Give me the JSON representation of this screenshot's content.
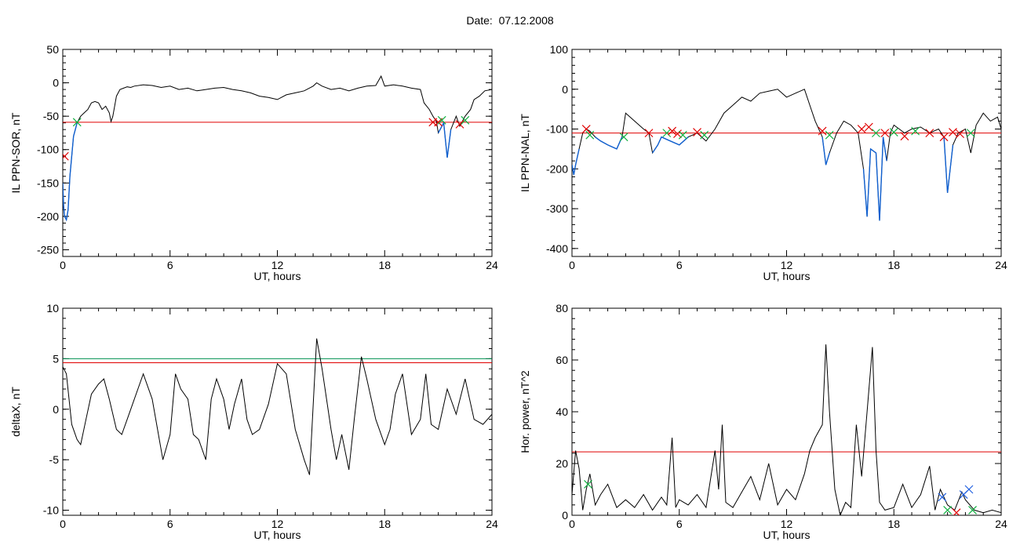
{
  "page_title": "Date:  07.12.2008",
  "colors": {
    "trace": "#000000",
    "threshold_red": "#e00000",
    "threshold_green": "#009050",
    "segment_blue": "#1060d0",
    "mark_red": "#e00000",
    "mark_green": "#10b040",
    "mark_blue": "#2060e0"
  },
  "chart_data": [
    {
      "type": "line",
      "xlabel": "UT, hours",
      "ylabel": "IL PPN-SOR, nT",
      "xlim": [
        0,
        24
      ],
      "ylim": [
        -260,
        50
      ],
      "x_ticks": [
        "0",
        "6",
        "12",
        "18",
        "24"
      ],
      "y_ticks": [
        "50",
        "0",
        "-50",
        "-100",
        "-150",
        "-200",
        "-250"
      ],
      "x_tick_values": [
        0,
        6,
        12,
        18,
        24
      ],
      "y_tick_values": [
        50,
        0,
        -50,
        -100,
        -150,
        -200,
        -250
      ],
      "thresholds": [
        {
          "value": -59,
          "color": "red"
        }
      ],
      "series": [
        {
          "x": [
            0,
            0.05,
            0.1,
            0.2,
            0.3,
            0.4,
            0.5,
            0.6,
            0.7,
            0.8,
            0.9,
            1.0,
            1.2,
            1.4,
            1.6,
            1.8,
            2.0,
            2.2,
            2.4,
            2.6,
            2.7,
            2.8,
            3.0,
            3.2,
            3.4,
            3.6,
            3.8,
            4.0,
            4.5,
            5.0,
            5.5,
            6.0,
            6.5,
            7.0,
            7.5,
            8.0,
            8.5,
            9.0,
            9.5,
            10.0,
            10.5,
            11.0,
            11.5,
            12.0,
            12.5,
            13.0,
            13.5,
            14.0,
            14.2,
            14.5,
            15.0,
            15.5,
            16.0,
            16.5,
            17.0,
            17.5,
            17.8,
            18.0,
            18.5,
            19.0,
            19.5,
            20.0,
            20.2,
            20.5,
            20.7,
            20.9,
            21.0,
            21.1,
            21.3,
            21.5,
            21.7,
            22.0,
            22.2,
            22.5,
            22.8,
            23.0,
            23.3,
            23.6,
            24.0
          ],
          "y": [
            -150,
            -185,
            -200,
            -205,
            -190,
            -140,
            -110,
            -80,
            -70,
            -60,
            -55,
            -50,
            -45,
            -40,
            -30,
            -28,
            -30,
            -40,
            -35,
            -45,
            -58,
            -50,
            -20,
            -10,
            -8,
            -6,
            -7,
            -5,
            -3,
            -4,
            -7,
            -5,
            -10,
            -8,
            -12,
            -10,
            -8,
            -7,
            -10,
            -12,
            -15,
            -20,
            -22,
            -25,
            -18,
            -15,
            -12,
            -5,
            0,
            -5,
            -10,
            -8,
            -12,
            -8,
            -5,
            -4,
            10,
            -5,
            -3,
            -5,
            -8,
            -10,
            -30,
            -40,
            -50,
            -58,
            -75,
            -70,
            -60,
            -112,
            -70,
            -50,
            -65,
            -50,
            -40,
            -25,
            -20,
            -12,
            -10
          ]
        }
      ],
      "marks": [
        {
          "x": 0.1,
          "y": -110,
          "color": "red"
        },
        {
          "x": 0.8,
          "y": -59,
          "color": "green"
        },
        {
          "x": 20.7,
          "y": -59,
          "color": "red"
        },
        {
          "x": 21.0,
          "y": -59,
          "color": "red"
        },
        {
          "x": 21.2,
          "y": -56,
          "color": "green"
        },
        {
          "x": 22.2,
          "y": -62,
          "color": "red"
        },
        {
          "x": 22.5,
          "y": -56,
          "color": "green"
        }
      ]
    },
    {
      "type": "line",
      "xlabel": "UT, hours",
      "ylabel": "IL PPN-NAL, nT",
      "xlim": [
        0,
        24
      ],
      "ylim": [
        -420,
        100
      ],
      "x_ticks": [
        "0",
        "6",
        "12",
        "18",
        "24"
      ],
      "y_ticks": [
        "100",
        "0",
        "-100",
        "-200",
        "-300",
        "-400"
      ],
      "x_tick_values": [
        0,
        6,
        12,
        18,
        24
      ],
      "y_tick_values": [
        100,
        0,
        -100,
        -200,
        -300,
        -400
      ],
      "thresholds": [
        {
          "value": -110,
          "color": "red"
        }
      ],
      "series": [
        {
          "x": [
            0,
            0.1,
            0.2,
            0.4,
            0.6,
            0.8,
            1.0,
            1.3,
            1.6,
            2.0,
            2.5,
            2.8,
            3.0,
            3.5,
            4.0,
            4.3,
            4.5,
            4.8,
            5.0,
            5.5,
            6.0,
            6.5,
            7.0,
            7.5,
            8.0,
            8.5,
            9.0,
            9.5,
            10.0,
            10.5,
            11.0,
            11.5,
            12.0,
            12.5,
            13.0,
            13.3,
            13.6,
            14.0,
            14.2,
            14.4,
            14.8,
            15.2,
            15.6,
            16.0,
            16.3,
            16.5,
            16.7,
            17.0,
            17.2,
            17.4,
            17.6,
            17.8,
            18.0,
            18.3,
            18.6,
            19.0,
            19.5,
            20.0,
            20.5,
            20.8,
            21.0,
            21.3,
            21.6,
            22.0,
            22.3,
            22.6,
            23.0,
            23.4,
            23.8,
            24.0
          ],
          "y": [
            -190,
            -215,
            -190,
            -150,
            -110,
            -100,
            -105,
            -120,
            -130,
            -140,
            -150,
            -120,
            -60,
            -80,
            -100,
            -110,
            -160,
            -140,
            -120,
            -130,
            -140,
            -120,
            -110,
            -130,
            -100,
            -60,
            -40,
            -20,
            -30,
            -10,
            -5,
            0,
            -20,
            -10,
            0,
            -40,
            -80,
            -120,
            -190,
            -160,
            -110,
            -80,
            -90,
            -110,
            -200,
            -320,
            -150,
            -160,
            -330,
            -120,
            -180,
            -110,
            -90,
            -100,
            -110,
            -100,
            -95,
            -110,
            -100,
            -120,
            -260,
            -140,
            -110,
            -100,
            -160,
            -90,
            -60,
            -80,
            -70,
            -100
          ]
        }
      ],
      "marks": [
        {
          "x": 0.8,
          "y": -100,
          "color": "red"
        },
        {
          "x": 1.0,
          "y": -115,
          "color": "green"
        },
        {
          "x": 2.9,
          "y": -120,
          "color": "green"
        },
        {
          "x": 4.3,
          "y": -110,
          "color": "red"
        },
        {
          "x": 5.3,
          "y": -110,
          "color": "green"
        },
        {
          "x": 5.6,
          "y": -105,
          "color": "red"
        },
        {
          "x": 5.9,
          "y": -112,
          "color": "red"
        },
        {
          "x": 6.2,
          "y": -115,
          "color": "green"
        },
        {
          "x": 7.0,
          "y": -108,
          "color": "red"
        },
        {
          "x": 7.4,
          "y": -115,
          "color": "green"
        },
        {
          "x": 14.0,
          "y": -105,
          "color": "red"
        },
        {
          "x": 14.4,
          "y": -115,
          "color": "green"
        },
        {
          "x": 16.2,
          "y": -100,
          "color": "red"
        },
        {
          "x": 16.6,
          "y": -95,
          "color": "red"
        },
        {
          "x": 17.0,
          "y": -110,
          "color": "green"
        },
        {
          "x": 17.5,
          "y": -110,
          "color": "red"
        },
        {
          "x": 18.0,
          "y": -108,
          "color": "green"
        },
        {
          "x": 18.6,
          "y": -118,
          "color": "red"
        },
        {
          "x": 19.2,
          "y": -105,
          "color": "green"
        },
        {
          "x": 20.0,
          "y": -110,
          "color": "red"
        },
        {
          "x": 20.8,
          "y": -120,
          "color": "red"
        },
        {
          "x": 21.3,
          "y": -108,
          "color": "red"
        },
        {
          "x": 21.7,
          "y": -112,
          "color": "red"
        },
        {
          "x": 22.3,
          "y": -110,
          "color": "green"
        }
      ]
    },
    {
      "type": "line",
      "xlabel": "UT, hours",
      "ylabel": "deltaX, nT",
      "xlim": [
        0,
        24
      ],
      "ylim": [
        -10.5,
        10
      ],
      "x_ticks": [
        "0",
        "6",
        "12",
        "18",
        "24"
      ],
      "y_ticks": [
        "10",
        "5",
        "0",
        "-5",
        "-10"
      ],
      "x_tick_values": [
        0,
        6,
        12,
        18,
        24
      ],
      "y_tick_values": [
        10,
        5,
        0,
        -5,
        -10
      ],
      "thresholds": [
        {
          "value": 5.0,
          "color": "green"
        },
        {
          "value": 4.6,
          "color": "red"
        }
      ],
      "series": [
        {
          "x": [
            0,
            0.2,
            0.5,
            0.8,
            1.0,
            1.3,
            1.6,
            2.0,
            2.3,
            2.6,
            3.0,
            3.3,
            3.6,
            4.0,
            4.5,
            5.0,
            5.3,
            5.6,
            6.0,
            6.3,
            6.6,
            7.0,
            7.3,
            7.6,
            8.0,
            8.3,
            8.6,
            9.0,
            9.3,
            9.6,
            10.0,
            10.3,
            10.6,
            11.0,
            11.5,
            12.0,
            12.5,
            13.0,
            13.5,
            13.8,
            14.2,
            14.5,
            15.0,
            15.3,
            15.6,
            16.0,
            16.3,
            16.7,
            17.0,
            17.5,
            18.0,
            18.3,
            18.6,
            19.0,
            19.5,
            20.0,
            20.3,
            20.6,
            21.0,
            21.5,
            22.0,
            22.5,
            23.0,
            23.5,
            24.0
          ],
          "y": [
            4.2,
            3.5,
            -1.5,
            -3.0,
            -3.5,
            -1.0,
            1.5,
            2.5,
            3.0,
            1.0,
            -2.0,
            -2.5,
            -1.0,
            1.0,
            3.5,
            1.0,
            -2.0,
            -5.0,
            -2.5,
            3.5,
            2.0,
            1.0,
            -2.5,
            -3.0,
            -5.0,
            1.0,
            3.0,
            1.0,
            -2.0,
            0.5,
            3.0,
            -1.0,
            -2.5,
            -2.0,
            0.5,
            4.5,
            3.5,
            -2.0,
            -5.0,
            -6.5,
            7.0,
            4.0,
            -2.0,
            -5.0,
            -2.5,
            -6.0,
            -1.0,
            5.2,
            3.0,
            -1.0,
            -3.5,
            -2.0,
            1.5,
            3.5,
            -2.5,
            -1.0,
            3.5,
            -1.5,
            -2.0,
            2.0,
            -0.5,
            3.0,
            -1.0,
            -1.5,
            -0.5
          ]
        }
      ],
      "marks": []
    },
    {
      "type": "line",
      "xlabel": "UT, hours",
      "ylabel": "Hor. power, nT^2",
      "xlim": [
        0,
        24
      ],
      "ylim": [
        0,
        80
      ],
      "x_ticks": [
        "0",
        "6",
        "12",
        "18",
        "24"
      ],
      "y_ticks": [
        "80",
        "60",
        "40",
        "20",
        "0"
      ],
      "x_tick_values": [
        0,
        6,
        12,
        18,
        24
      ],
      "y_tick_values": [
        80,
        60,
        40,
        20,
        0
      ],
      "thresholds": [
        {
          "value": 24.5,
          "color": "red"
        }
      ],
      "series": [
        {
          "x": [
            0,
            0.2,
            0.4,
            0.6,
            0.8,
            1.0,
            1.3,
            1.6,
            2.0,
            2.5,
            3.0,
            3.5,
            4.0,
            4.5,
            5.0,
            5.3,
            5.6,
            5.8,
            6.0,
            6.5,
            7.0,
            7.5,
            8.0,
            8.2,
            8.4,
            8.6,
            9.0,
            9.5,
            10.0,
            10.5,
            11.0,
            11.5,
            12.0,
            12.5,
            13.0,
            13.3,
            13.6,
            14.0,
            14.2,
            14.4,
            14.7,
            15.0,
            15.3,
            15.6,
            15.9,
            16.2,
            16.5,
            16.8,
            17.0,
            17.2,
            17.5,
            18.0,
            18.5,
            19.0,
            19.5,
            20.0,
            20.3,
            20.6,
            21.0,
            21.4,
            21.8,
            22.0,
            22.5,
            23.0,
            23.5,
            24.0
          ],
          "y": [
            8,
            25,
            18,
            2,
            10,
            16,
            4,
            8,
            12,
            3,
            6,
            3,
            8,
            2,
            7,
            4,
            30,
            3,
            6,
            4,
            8,
            3,
            25,
            10,
            35,
            5,
            3,
            9,
            15,
            6,
            20,
            4,
            10,
            6,
            16,
            25,
            30,
            35,
            66,
            40,
            10,
            0,
            5,
            3,
            35,
            15,
            40,
            65,
            25,
            5,
            2,
            3,
            12,
            3,
            8,
            19,
            2,
            10,
            4,
            2,
            9,
            6,
            2,
            1,
            2,
            1
          ]
        }
      ],
      "marks": [
        {
          "x": 0.9,
          "y": 12,
          "color": "green"
        },
        {
          "x": 20.7,
          "y": 7,
          "color": "blue"
        },
        {
          "x": 21.0,
          "y": 2,
          "color": "green"
        },
        {
          "x": 21.5,
          "y": 1,
          "color": "red"
        },
        {
          "x": 21.9,
          "y": 8,
          "color": "blue"
        },
        {
          "x": 22.2,
          "y": 10,
          "color": "blue"
        },
        {
          "x": 22.4,
          "y": 2,
          "color": "green"
        }
      ]
    }
  ]
}
